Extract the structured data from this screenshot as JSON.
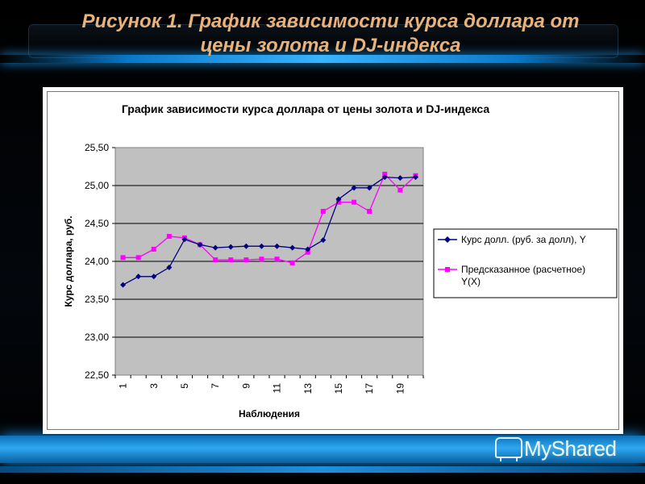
{
  "slide": {
    "title": "Рисунок 1. График зависимости курса доллара от цены золота и DJ-индекса"
  },
  "watermark": {
    "text": "MyShared"
  },
  "colors": {
    "series_actual": "#000080",
    "series_predicted": "#ff00ff",
    "plot_background": "#c0c0c0",
    "slide_title": "#e8b27a"
  },
  "chart_data": {
    "type": "line",
    "title": "График зависимости курса доллара от цены золота и DJ-индекса",
    "xlabel": "Наблюдения",
    "ylabel": "Курс доллара, руб.",
    "x": [
      1,
      2,
      3,
      4,
      5,
      6,
      7,
      8,
      9,
      10,
      11,
      12,
      13,
      14,
      15,
      16,
      17,
      18,
      19,
      20
    ],
    "x_tick_labels": [
      "1",
      "3",
      "5",
      "7",
      "9",
      "11",
      "13",
      "15",
      "17",
      "19"
    ],
    "ylim": [
      22.5,
      25.5
    ],
    "y_ticks": [
      "22,50",
      "23,00",
      "23,50",
      "24,00",
      "24,50",
      "25,00",
      "25,50"
    ],
    "grid": "horizontal",
    "legend_position": "right",
    "series": [
      {
        "name": "Курс долл. (руб. за долл), Y",
        "marker": "diamond",
        "values": [
          23.69,
          23.8,
          23.8,
          23.92,
          24.29,
          24.22,
          24.18,
          24.19,
          24.2,
          24.2,
          24.2,
          24.18,
          24.16,
          24.28,
          24.82,
          24.97,
          24.97,
          25.11,
          25.1,
          25.11
        ]
      },
      {
        "name": "Предсказанное (расчетное) Y(X)",
        "marker": "square",
        "values": [
          24.05,
          24.05,
          24.16,
          24.33,
          24.31,
          24.22,
          24.02,
          24.02,
          24.02,
          24.03,
          24.03,
          23.98,
          24.12,
          24.66,
          24.78,
          24.78,
          24.66,
          25.15,
          24.94,
          25.13
        ]
      }
    ]
  }
}
